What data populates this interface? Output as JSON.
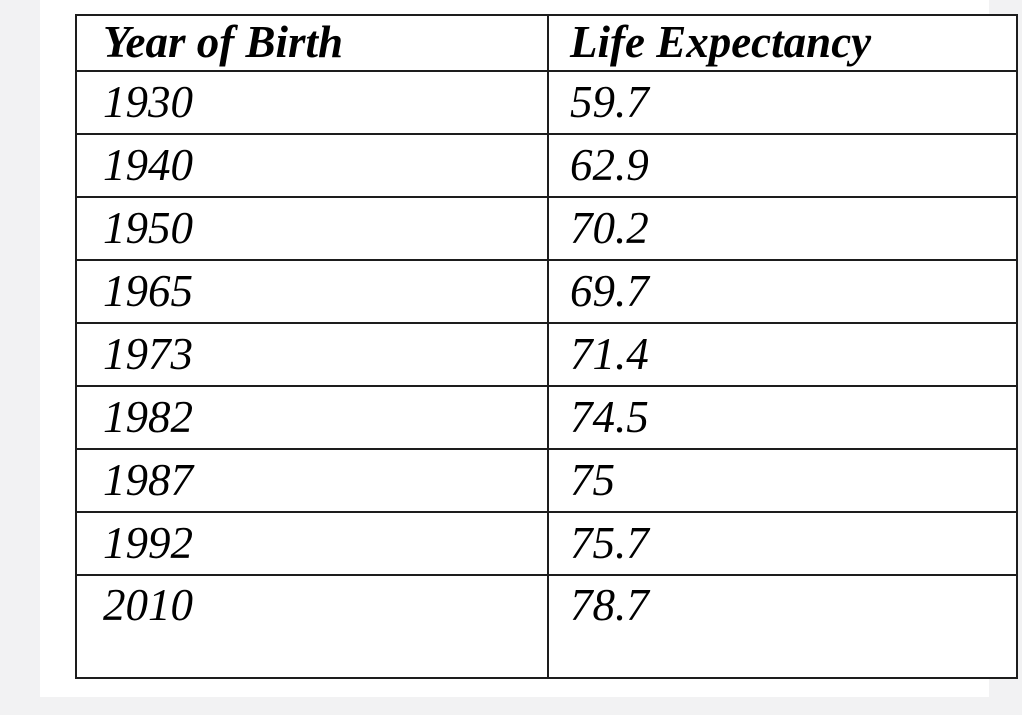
{
  "colors": {
    "canvas_background": "#f2f2f3",
    "page_background": "#ffffff",
    "table_border": "#1d1d1d",
    "text": "#000000"
  },
  "table": {
    "columns": [
      "Year of Birth",
      "Life Expectancy"
    ],
    "rows": [
      [
        "1930",
        "59.7"
      ],
      [
        "1940",
        "62.9"
      ],
      [
        "1950",
        "70.2"
      ],
      [
        "1965",
        "69.7"
      ],
      [
        "1973",
        "71.4"
      ],
      [
        "1982",
        "74.5"
      ],
      [
        "1987",
        "75"
      ],
      [
        "1992",
        "75.7"
      ],
      [
        "2010",
        "78.7"
      ]
    ]
  },
  "chart_data": {
    "type": "table",
    "title": "",
    "columns": [
      "Year of Birth",
      "Life Expectancy"
    ],
    "rows": [
      [
        1930,
        59.7
      ],
      [
        1940,
        62.9
      ],
      [
        1950,
        70.2
      ],
      [
        1965,
        69.7
      ],
      [
        1973,
        71.4
      ],
      [
        1982,
        74.5
      ],
      [
        1987,
        75
      ],
      [
        1992,
        75.7
      ],
      [
        2010,
        78.7
      ]
    ]
  }
}
